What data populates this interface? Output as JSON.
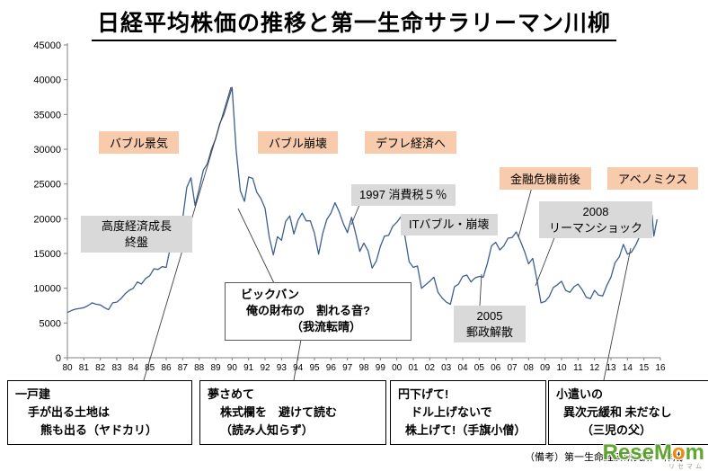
{
  "source_note": "（備考）第一生命経済研究所　作成",
  "watermark": {
    "part1": "ReseM",
    "part2": "o",
    "part3": "m",
    "sub": "リセマム"
  },
  "colors": {
    "line": "#3c5f92",
    "orange_box": "#f8cbad",
    "gray_box": "#d9d9d9",
    "watermark_green": "#58a227",
    "watermark_orange": "#f08300"
  },
  "annotations": {
    "bubble_boom": "バブル景気",
    "bubble_burst": "バブル崩壊",
    "deflation": "デフレ経済へ",
    "financial_crisis": "金融危機前後",
    "abenomics": "アベノミクス"
  },
  "callouts": {
    "high_growth": {
      "lines": [
        "高度経済成長",
        "終盤"
      ]
    },
    "tax97": "1997 消費税５％",
    "it_bubble": "ITバブル・崩壊",
    "lehman": {
      "lines": [
        "2008",
        "リーマンショック"
      ]
    },
    "postal": {
      "lines": [
        "2005",
        "郵政解散"
      ]
    },
    "bigbang": {
      "lines": [
        "ビックバン",
        "俺の財布の　割れる音?",
        "（我流転晴）"
      ]
    }
  },
  "senryu": [
    {
      "lines": [
        "一戸建",
        "手が出る土地は",
        "熊も出る（ヤドカリ）"
      ]
    },
    {
      "lines": [
        "夢さめて",
        "株式欄を　避けて読む",
        "（読み人知らず）"
      ]
    },
    {
      "lines": [
        "円下げて!",
        "ドル上げないで",
        "株上げて!（手旗小僧）"
      ]
    },
    {
      "lines": [
        "小遣いの",
        "異次元緩和 未だなし",
        "（三児の父）"
      ]
    }
  ],
  "chart_data": {
    "type": "line",
    "title": "日経平均株価の推移と第一生命サラリーマン川柳",
    "series_name": "日経平均株価",
    "xlabel": "",
    "ylabel": "",
    "grid": false,
    "legend": "none",
    "xlim": [
      1980,
      2016
    ],
    "ylim": [
      0,
      45000
    ],
    "line_color": "#3c5f92",
    "y_ticks": [
      0,
      5000,
      10000,
      15000,
      20000,
      25000,
      30000,
      35000,
      40000,
      45000
    ],
    "x_ticks": [
      [
        1980,
        "80"
      ],
      [
        1981,
        "81"
      ],
      [
        1982,
        "82"
      ],
      [
        1983,
        "83"
      ],
      [
        1984,
        "84"
      ],
      [
        1985,
        "85"
      ],
      [
        1986,
        "86"
      ],
      [
        1987,
        "87"
      ],
      [
        1988,
        "88"
      ],
      [
        1989,
        "89"
      ],
      [
        1990,
        "90"
      ],
      [
        1991,
        "91"
      ],
      [
        1992,
        "92"
      ],
      [
        1993,
        "93"
      ],
      [
        1994,
        "94"
      ],
      [
        1995,
        "95"
      ],
      [
        1996,
        "96"
      ],
      [
        1997,
        "97"
      ],
      [
        1998,
        "98"
      ],
      [
        1999,
        "99"
      ],
      [
        2000,
        "00"
      ],
      [
        2001,
        "01"
      ],
      [
        2002,
        "02"
      ],
      [
        2003,
        "03"
      ],
      [
        2004,
        "04"
      ],
      [
        2005,
        "05"
      ],
      [
        2006,
        "06"
      ],
      [
        2007,
        "07"
      ],
      [
        2008,
        "08"
      ],
      [
        2009,
        "09"
      ],
      [
        2010,
        "10"
      ],
      [
        2011,
        "11"
      ],
      [
        2012,
        "12"
      ],
      [
        2013,
        "13"
      ],
      [
        2014,
        "14"
      ],
      [
        2015,
        "15"
      ],
      [
        2016,
        "16"
      ]
    ],
    "points": [
      [
        1980,
        6500
      ],
      [
        1980.25,
        6800
      ],
      [
        1980.5,
        7000
      ],
      [
        1980.75,
        7100
      ],
      [
        1981,
        7200
      ],
      [
        1981.25,
        7500
      ],
      [
        1981.5,
        7900
      ],
      [
        1981.75,
        7700
      ],
      [
        1982,
        7600
      ],
      [
        1982.25,
        7200
      ],
      [
        1982.5,
        6900
      ],
      [
        1982.75,
        7900
      ],
      [
        1983,
        8000
      ],
      [
        1983.25,
        8500
      ],
      [
        1983.5,
        9200
      ],
      [
        1983.75,
        9700
      ],
      [
        1984,
        10000
      ],
      [
        1984.25,
        10900
      ],
      [
        1984.5,
        10600
      ],
      [
        1984.75,
        11400
      ],
      [
        1985,
        11800
      ],
      [
        1985.25,
        12800
      ],
      [
        1985.5,
        12700
      ],
      [
        1985.75,
        13100
      ],
      [
        1986,
        13000
      ],
      [
        1986.25,
        15900
      ],
      [
        1986.5,
        17700
      ],
      [
        1986.75,
        18700
      ],
      [
        1987,
        20000
      ],
      [
        1987.25,
        24500
      ],
      [
        1987.5,
        25900
      ],
      [
        1987.75,
        21900
      ],
      [
        1988,
        24300
      ],
      [
        1988.25,
        27000
      ],
      [
        1988.5,
        27900
      ],
      [
        1988.75,
        30000
      ],
      [
        1989,
        31500
      ],
      [
        1989.25,
        33700
      ],
      [
        1989.5,
        35000
      ],
      [
        1989.75,
        37000
      ],
      [
        1990,
        38900
      ],
      [
        1990.25,
        29800
      ],
      [
        1990.5,
        24000
      ],
      [
        1990.75,
        22500
      ],
      [
        1991,
        26000
      ],
      [
        1991.25,
        25800
      ],
      [
        1991.5,
        23800
      ],
      [
        1991.75,
        22900
      ],
      [
        1992,
        21500
      ],
      [
        1992.25,
        17400
      ],
      [
        1992.5,
        14800
      ],
      [
        1992.75,
        17400
      ],
      [
        1993,
        16900
      ],
      [
        1993.25,
        19600
      ],
      [
        1993.5,
        20400
      ],
      [
        1993.75,
        17800
      ],
      [
        1994,
        19800
      ],
      [
        1994.25,
        20800
      ],
      [
        1994.5,
        19700
      ],
      [
        1994.75,
        19700
      ],
      [
        1995,
        17900
      ],
      [
        1995.25,
        14900
      ],
      [
        1995.5,
        17900
      ],
      [
        1995.75,
        19900
      ],
      [
        1996,
        20800
      ],
      [
        1996.25,
        22300
      ],
      [
        1996.5,
        21000
      ],
      [
        1996.75,
        19300
      ],
      [
        1997,
        18000
      ],
      [
        1997.25,
        20200
      ],
      [
        1997.5,
        17900
      ],
      [
        1997.75,
        15300
      ],
      [
        1998,
        16500
      ],
      [
        1998.25,
        15400
      ],
      [
        1998.5,
        12900
      ],
      [
        1998.75,
        13900
      ],
      [
        1999,
        16000
      ],
      [
        1999.25,
        17500
      ],
      [
        1999.5,
        17600
      ],
      [
        1999.75,
        18900
      ],
      [
        2000,
        19500
      ],
      [
        2000.25,
        20300
      ],
      [
        2000.5,
        17400
      ],
      [
        2000.75,
        13800
      ],
      [
        2001,
        13000
      ],
      [
        2001.25,
        13200
      ],
      [
        2001.5,
        10000
      ],
      [
        2001.75,
        10500
      ],
      [
        2002,
        11000
      ],
      [
        2002.25,
        11600
      ],
      [
        2002.5,
        9400
      ],
      [
        2002.75,
        8600
      ],
      [
        2003,
        8000
      ],
      [
        2003.25,
        7700
      ],
      [
        2003.5,
        10200
      ],
      [
        2003.75,
        10600
      ],
      [
        2004,
        11700
      ],
      [
        2004.25,
        11900
      ],
      [
        2004.5,
        10900
      ],
      [
        2004.75,
        11500
      ],
      [
        2005,
        11700
      ],
      [
        2005.25,
        11600
      ],
      [
        2005.5,
        13600
      ],
      [
        2005.75,
        16100
      ],
      [
        2006,
        16600
      ],
      [
        2006.25,
        15500
      ],
      [
        2006.5,
        16100
      ],
      [
        2006.75,
        17200
      ],
      [
        2007,
        17300
      ],
      [
        2007.25,
        18100
      ],
      [
        2007.5,
        16800
      ],
      [
        2007.75,
        15300
      ],
      [
        2008,
        13500
      ],
      [
        2008.25,
        14300
      ],
      [
        2008.5,
        11300
      ],
      [
        2008.75,
        7900
      ],
      [
        2009,
        8100
      ],
      [
        2009.25,
        8800
      ],
      [
        2009.5,
        10100
      ],
      [
        2009.75,
        10500
      ],
      [
        2010,
        11000
      ],
      [
        2010.25,
        9700
      ],
      [
        2010.5,
        9400
      ],
      [
        2010.75,
        10200
      ],
      [
        2011,
        10600
      ],
      [
        2011.25,
        9800
      ],
      [
        2011.5,
        8700
      ],
      [
        2011.75,
        8500
      ],
      [
        2012,
        9700
      ],
      [
        2012.25,
        9000
      ],
      [
        2012.5,
        8900
      ],
      [
        2012.75,
        10400
      ],
      [
        2013,
        11600
      ],
      [
        2013.25,
        13700
      ],
      [
        2013.5,
        14500
      ],
      [
        2013.75,
        16300
      ],
      [
        2014,
        14900
      ],
      [
        2014.25,
        15200
      ],
      [
        2014.5,
        16200
      ],
      [
        2014.75,
        17500
      ],
      [
        2015,
        17500
      ],
      [
        2015.25,
        20000
      ],
      [
        2015.5,
        20500
      ],
      [
        2015.6,
        17500
      ],
      [
        2015.8,
        19900
      ]
    ]
  }
}
